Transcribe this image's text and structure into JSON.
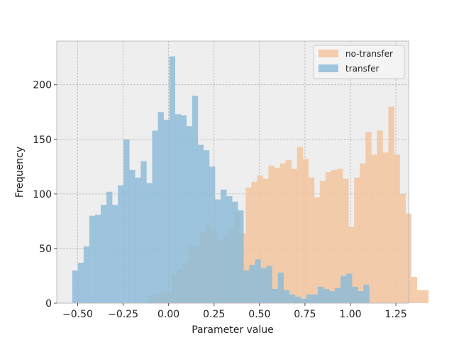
{
  "chart_data": {
    "type": "bar",
    "title": "",
    "xlabel": "Parameter value",
    "ylabel": "Frequency",
    "xlim": [
      -0.615,
      1.32
    ],
    "ylim": [
      0,
      240
    ],
    "xticks": [
      -0.5,
      -0.25,
      0.0,
      0.25,
      0.5,
      0.75,
      1.0,
      1.25
    ],
    "xtick_labels": [
      "−0.50",
      "−0.25",
      "0.00",
      "0.25",
      "0.50",
      "0.75",
      "1.00",
      "1.25"
    ],
    "yticks": [
      0,
      50,
      100,
      150,
      200
    ],
    "ytick_labels": [
      "0",
      "50",
      "100",
      "150",
      "200"
    ],
    "grid": true,
    "legend_position": "top-right",
    "series": [
      {
        "name": "no-transfer",
        "color": "#f2c49e",
        "bin_start": -0.11,
        "bin_width": 0.0314,
        "values": [
          6,
          8,
          10,
          9,
          27,
          31,
          37,
          52,
          51,
          65,
          72,
          67,
          58,
          61,
          68,
          84,
          64,
          106,
          111,
          117,
          114,
          126,
          124,
          128,
          131,
          123,
          143,
          132,
          115,
          97,
          112,
          120,
          122,
          123,
          114,
          70,
          115,
          128,
          157,
          136,
          158,
          138,
          180,
          136,
          100,
          82,
          24,
          12,
          12
        ]
      },
      {
        "name": "transfer",
        "color": "#8ebcd8",
        "bin_start": -0.53,
        "bin_width": 0.0314,
        "values": [
          30,
          37,
          52,
          80,
          81,
          90,
          102,
          90,
          108,
          150,
          122,
          115,
          130,
          110,
          158,
          175,
          168,
          226,
          173,
          172,
          162,
          190,
          145,
          140,
          125,
          95,
          104,
          98,
          93,
          85,
          30,
          35,
          40,
          32,
          34,
          13,
          28,
          12,
          8,
          6,
          4,
          8,
          8,
          15,
          13,
          11,
          14,
          25,
          27,
          15,
          11,
          17
        ]
      }
    ]
  }
}
